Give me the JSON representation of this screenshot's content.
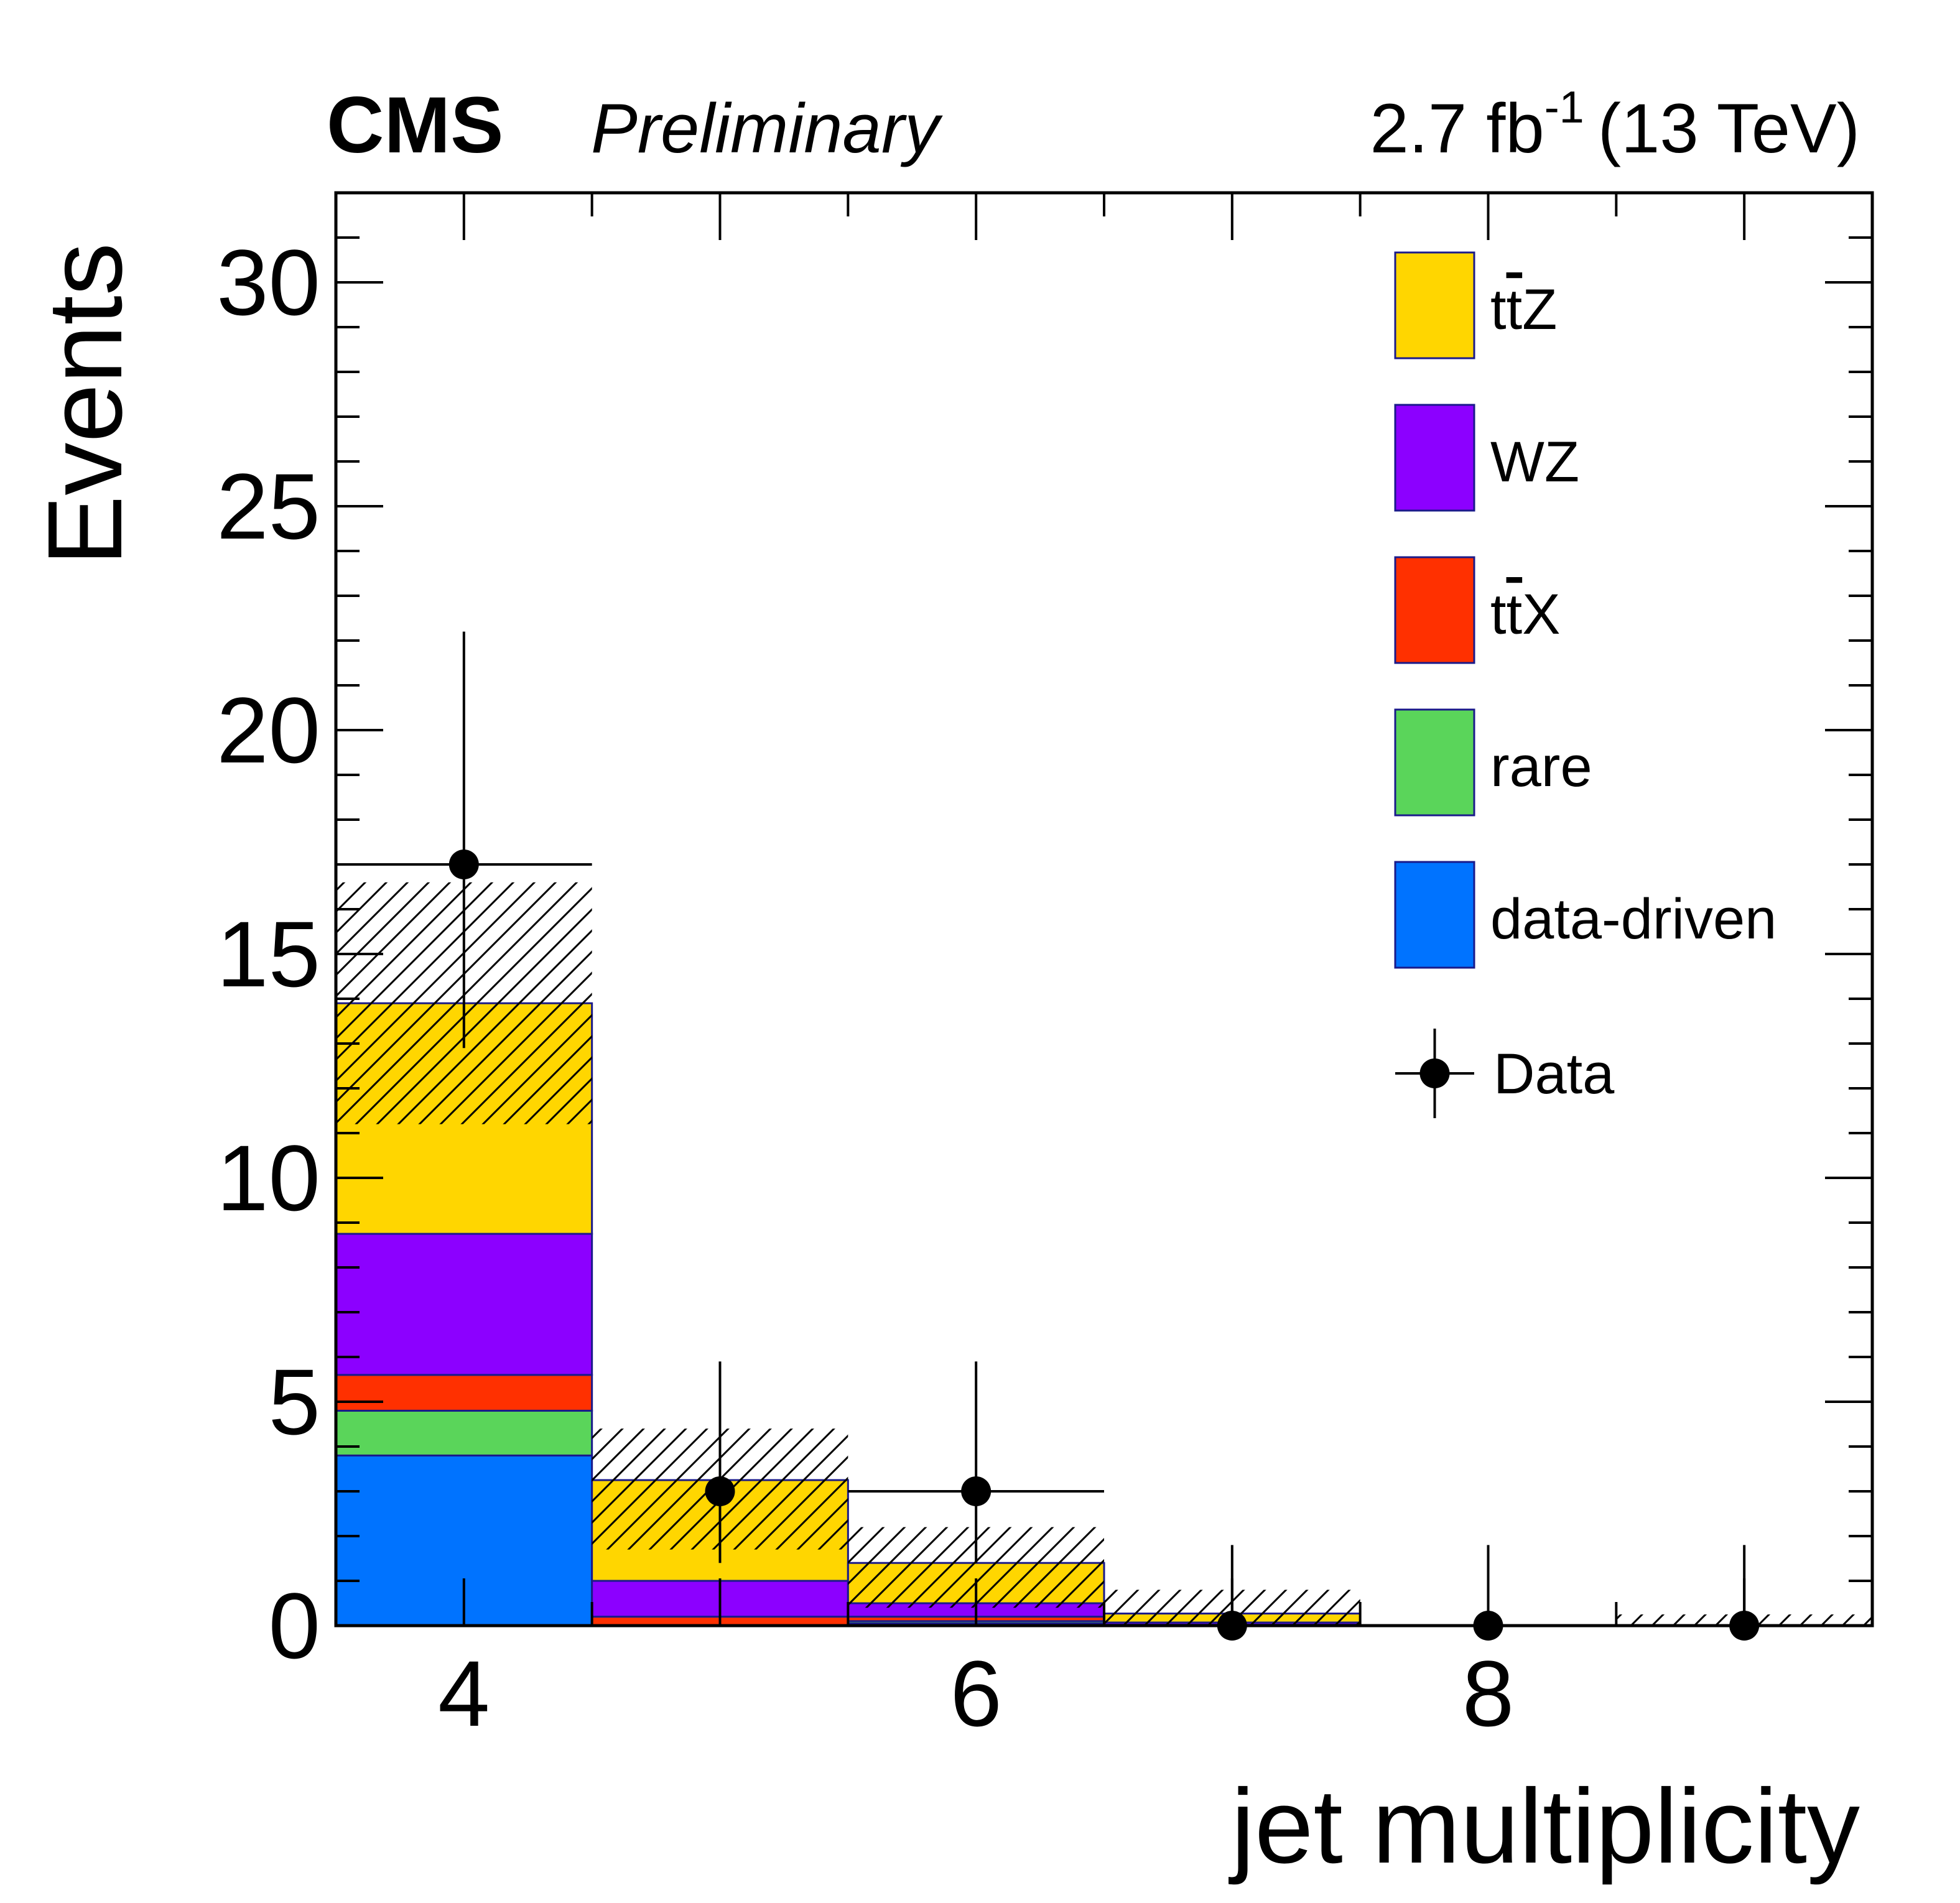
{
  "header": {
    "experiment": "CMS",
    "status": "Preliminary",
    "lumi_value": "2.7 fb",
    "lumi_exp": "-1",
    "energy": "(13 TeV)"
  },
  "chart_data": {
    "type": "bar",
    "stacked": true,
    "xlabel": "jet multiplicity",
    "ylabel": "Events",
    "xlim": [
      3.5,
      9.5
    ],
    "ylim": [
      0,
      32
    ],
    "grid": false,
    "legend_position": "top-right",
    "bins": [
      {
        "low": 3.5,
        "high": 4.5,
        "center": 4
      },
      {
        "low": 4.5,
        "high": 5.5,
        "center": 5
      },
      {
        "low": 5.5,
        "high": 6.5,
        "center": 6
      },
      {
        "low": 6.5,
        "high": 7.5,
        "center": 7
      },
      {
        "low": 7.5,
        "high": 8.5,
        "center": 8
      },
      {
        "low": 8.5,
        "high": 9.5,
        "center": 9
      }
    ],
    "x_ticks": [
      4,
      6,
      8
    ],
    "y_ticks": [
      0,
      5,
      10,
      15,
      20,
      25,
      30
    ],
    "series": [
      {
        "name": "data-driven",
        "color": "#0073ff",
        "values": [
          3.8,
          0.0,
          0.05,
          0.0,
          0.0,
          0.0
        ]
      },
      {
        "name": "rare",
        "color": "#5ad55a",
        "values": [
          1.0,
          0.0,
          0.05,
          0.0,
          0.0,
          0.0
        ]
      },
      {
        "name": "ttX",
        "label_main": "tt",
        "label_suffix": "X",
        "color": "#ff3000",
        "values": [
          0.8,
          0.2,
          0.1,
          0.02,
          0.0,
          0.0
        ]
      },
      {
        "name": "WZ",
        "color": "#8c00ff",
        "values": [
          3.15,
          0.8,
          0.3,
          0.05,
          0.0,
          0.0
        ]
      },
      {
        "name": "ttZ",
        "label_main": "tt",
        "label_suffix": "Z",
        "color": "#ffd600",
        "values": [
          5.15,
          2.25,
          0.9,
          0.2,
          0.0,
          0.0
        ]
      }
    ],
    "uncertainty_band": {
      "low": [
        11.2,
        1.7,
        0.4,
        0.0,
        0.0,
        0.0
      ],
      "high": [
        16.6,
        4.4,
        2.2,
        0.8,
        0.0,
        0.25
      ]
    },
    "data": {
      "name": "Data",
      "x": [
        4,
        5,
        6,
        7,
        8,
        9
      ],
      "y": [
        17,
        3,
        3,
        0,
        0,
        0
      ],
      "err_low": [
        4.1,
        1.6,
        1.6,
        0,
        0,
        0
      ],
      "err_high": [
        5.2,
        2.9,
        2.9,
        1.8,
        1.8,
        1.8
      ],
      "x_err": [
        0.5,
        0.0,
        0.5,
        0.0,
        0.0,
        0.0
      ]
    },
    "legend_order": [
      "ttZ",
      "WZ",
      "ttX",
      "rare",
      "data-driven",
      "Data"
    ]
  }
}
